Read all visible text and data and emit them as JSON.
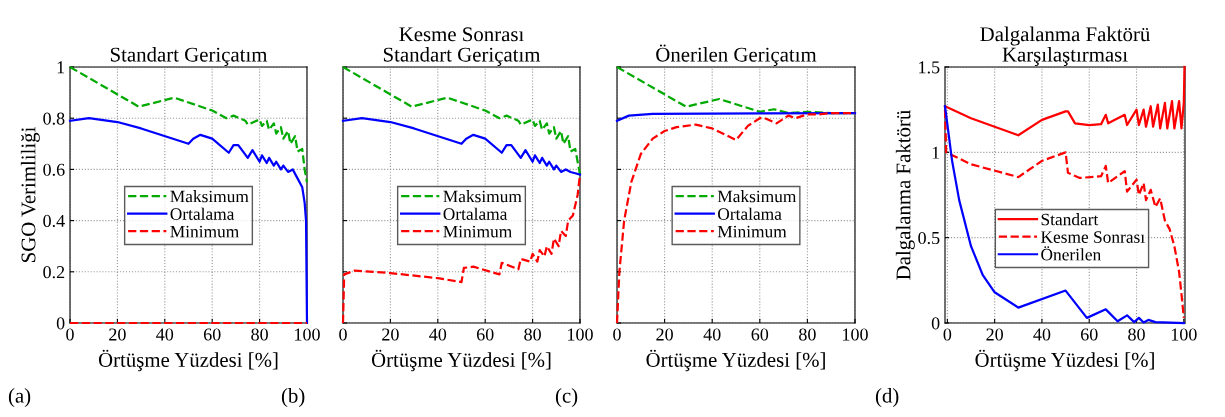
{
  "chart_data": [
    {
      "type": "line",
      "title": "Standart Geriçatım",
      "xlabel": "Örtüşme Yüzdesi [%]",
      "ylabel": "SGO Verimliliği",
      "annotations": [
        "(a)"
      ],
      "xlim": [
        0,
        100
      ],
      "ylim": [
        0,
        1
      ],
      "xticks": [
        0,
        20,
        40,
        60,
        80,
        100
      ],
      "yticks": [
        0,
        0.2,
        0.4,
        0.6,
        0.8,
        1
      ],
      "grid": true,
      "legend": "center",
      "series": [
        {
          "name": "Maksimum",
          "color": "#00aa00",
          "line_style": "dashed",
          "x": [
            0,
            29,
            44,
            60,
            66,
            69,
            74,
            75,
            80,
            81,
            83,
            84,
            86,
            87,
            89,
            90,
            92,
            93,
            95,
            96,
            98,
            99,
            100
          ],
          "values": [
            1,
            0.845,
            0.88,
            0.83,
            0.8,
            0.81,
            0.79,
            0.775,
            0.795,
            0.77,
            0.79,
            0.755,
            0.78,
            0.74,
            0.765,
            0.72,
            0.75,
            0.7,
            0.73,
            0.67,
            0.68,
            0.6,
            0.55
          ]
        },
        {
          "name": "Ortalama",
          "color": "#0000ff",
          "line_style": "solid",
          "x": [
            0,
            8,
            20,
            30,
            50,
            52,
            55,
            60,
            67,
            69,
            71,
            75,
            77,
            80,
            81,
            83,
            84,
            86,
            87,
            89,
            90,
            92,
            94,
            96,
            98,
            99,
            99.6,
            100
          ],
          "values": [
            0.79,
            0.8,
            0.785,
            0.76,
            0.7,
            0.72,
            0.735,
            0.72,
            0.665,
            0.695,
            0.695,
            0.645,
            0.675,
            0.63,
            0.655,
            0.625,
            0.645,
            0.615,
            0.63,
            0.6,
            0.615,
            0.59,
            0.6,
            0.565,
            0.53,
            0.47,
            0.4,
            0
          ]
        },
        {
          "name": "Minimum",
          "color": "#ff0000",
          "line_style": "dashed",
          "x": [
            0,
            100
          ],
          "values": [
            0,
            0
          ]
        }
      ]
    },
    {
      "type": "line",
      "title": "Kesme Sonrası\nStandart Geriçatım",
      "xlabel": "Örtüşme Yüzdesi [%]",
      "annotations": [
        "(b)"
      ],
      "xlim": [
        0,
        100
      ],
      "ylim": [
        0,
        1
      ],
      "xticks": [
        0,
        20,
        40,
        60,
        80,
        100
      ],
      "yticks": [
        0,
        0.2,
        0.4,
        0.6,
        0.8,
        1
      ],
      "tick_labels": "x",
      "grid": true,
      "legend": "center",
      "series": [
        {
          "name": "Maksimum",
          "color": "#00aa00",
          "line_style": "dashed",
          "x": [
            0,
            29,
            44,
            60,
            66,
            69,
            74,
            75,
            80,
            81,
            83,
            84,
            86,
            87,
            89,
            90,
            92,
            93,
            95,
            96,
            98,
            99,
            100
          ],
          "values": [
            1,
            0.845,
            0.88,
            0.83,
            0.8,
            0.81,
            0.79,
            0.775,
            0.795,
            0.77,
            0.79,
            0.755,
            0.78,
            0.74,
            0.765,
            0.72,
            0.75,
            0.7,
            0.73,
            0.67,
            0.68,
            0.63,
            0.58
          ]
        },
        {
          "name": "Ortalama",
          "color": "#0000ff",
          "line_style": "solid",
          "x": [
            0,
            8,
            20,
            30,
            50,
            52,
            55,
            60,
            67,
            69,
            71,
            75,
            77,
            80,
            81,
            83,
            84,
            86,
            87,
            89,
            90,
            92,
            94,
            96,
            98,
            100
          ],
          "values": [
            0.79,
            0.8,
            0.785,
            0.76,
            0.7,
            0.72,
            0.735,
            0.72,
            0.665,
            0.695,
            0.695,
            0.645,
            0.675,
            0.63,
            0.655,
            0.625,
            0.645,
            0.615,
            0.63,
            0.6,
            0.615,
            0.59,
            0.6,
            0.59,
            0.585,
            0.58
          ]
        },
        {
          "name": "Minimum",
          "color": "#ff0000",
          "line_style": "dashed",
          "x": [
            0,
            0.5,
            5,
            20,
            40,
            50,
            51,
            55,
            66,
            67,
            74,
            75,
            79,
            80,
            82,
            83,
            85,
            86,
            88,
            89,
            91,
            92,
            94,
            95,
            97,
            99,
            100
          ],
          "values": [
            0,
            0.19,
            0.205,
            0.195,
            0.175,
            0.16,
            0.215,
            0.22,
            0.19,
            0.235,
            0.21,
            0.25,
            0.24,
            0.27,
            0.24,
            0.285,
            0.26,
            0.3,
            0.27,
            0.33,
            0.3,
            0.36,
            0.34,
            0.4,
            0.42,
            0.5,
            0.58
          ]
        }
      ]
    },
    {
      "type": "line",
      "title": "Önerilen Geriçatım",
      "xlabel": "Örtüşme Yüzdesi [%]",
      "annotations": [
        "(c)"
      ],
      "xlim": [
        0,
        100
      ],
      "ylim": [
        0,
        1
      ],
      "xticks": [
        0,
        20,
        40,
        60,
        80,
        100
      ],
      "yticks": [
        0,
        0.2,
        0.4,
        0.6,
        0.8,
        1
      ],
      "tick_labels": "x",
      "grid": true,
      "legend": "center",
      "series": [
        {
          "name": "Maksimum",
          "color": "#00aa00",
          "line_style": "dashed",
          "x": [
            0,
            29,
            43,
            60,
            66,
            72,
            80,
            90,
            100
          ],
          "values": [
            1,
            0.845,
            0.875,
            0.825,
            0.835,
            0.82,
            0.825,
            0.82,
            0.82
          ]
        },
        {
          "name": "Ortalama",
          "color": "#0000ff",
          "line_style": "solid",
          "x": [
            0,
            5,
            15,
            100
          ],
          "values": [
            0.79,
            0.81,
            0.817,
            0.82
          ]
        },
        {
          "name": "Minimum",
          "color": "#ff0000",
          "line_style": "dashed",
          "x": [
            0,
            1,
            3,
            6,
            10,
            15,
            20,
            25,
            33,
            40,
            50,
            55,
            60,
            62,
            67,
            72,
            75,
            80,
            85,
            90,
            100
          ],
          "values": [
            0,
            0.2,
            0.4,
            0.55,
            0.66,
            0.72,
            0.75,
            0.765,
            0.775,
            0.76,
            0.715,
            0.77,
            0.8,
            0.8,
            0.78,
            0.81,
            0.8,
            0.815,
            0.815,
            0.82,
            0.82
          ]
        }
      ]
    },
    {
      "type": "line",
      "title": "Dalgalanma Faktörü\nKarşılaştırması",
      "xlabel": "Örtüşme Yüzdesi [%]",
      "ylabel": "Dalgalanma Faktörü",
      "annotations": [
        "(d)"
      ],
      "xlim": [
        -1,
        100.5
      ],
      "ylim": [
        0,
        1.5
      ],
      "xticks": [
        0,
        20,
        40,
        60,
        80,
        100
      ],
      "yticks": [
        0,
        0.5,
        1,
        1.5
      ],
      "grid": true,
      "legend": "center right",
      "series": [
        {
          "name": "Standart",
          "color": "#ff0000",
          "line_style": "solid",
          "x": [
            -1,
            10,
            30,
            40,
            50,
            51,
            54,
            60,
            65,
            67,
            68,
            75,
            76,
            80,
            81,
            83,
            84,
            86,
            87,
            89,
            90,
            92,
            93,
            95,
            96,
            98,
            99,
            100,
            100.3
          ],
          "values": [
            1.27,
            1.2,
            1.1,
            1.19,
            1.24,
            1.24,
            1.17,
            1.16,
            1.165,
            1.22,
            1.17,
            1.22,
            1.16,
            1.25,
            1.16,
            1.25,
            1.15,
            1.27,
            1.15,
            1.28,
            1.14,
            1.29,
            1.14,
            1.3,
            1.14,
            1.3,
            1.14,
            1.29,
            1.5
          ]
        },
        {
          "name": "Kesme Sonrası",
          "color": "#ff0000",
          "line_style": "dashed",
          "x": [
            -1,
            -0.5,
            10,
            30,
            40,
            50,
            51,
            56,
            65,
            67,
            68,
            75,
            76,
            80,
            81,
            83,
            84,
            86,
            88,
            90,
            92,
            94,
            96,
            98,
            99,
            100
          ],
          "values": [
            1.25,
            1.0,
            0.93,
            0.855,
            0.95,
            1.0,
            0.88,
            0.85,
            0.86,
            0.92,
            0.82,
            0.89,
            0.77,
            0.84,
            0.75,
            0.82,
            0.72,
            0.78,
            0.68,
            0.73,
            0.6,
            0.55,
            0.45,
            0.3,
            0.17,
            0.03
          ]
        },
        {
          "name": "Önerilen",
          "color": "#0000ff",
          "line_style": "solid",
          "x": [
            -1,
            2,
            5,
            10,
            15,
            20,
            30,
            50,
            59,
            67,
            72,
            76,
            79,
            81,
            83,
            85,
            88,
            100
          ],
          "values": [
            1.27,
            0.95,
            0.72,
            0.45,
            0.28,
            0.18,
            0.09,
            0.19,
            0.03,
            0.08,
            0.01,
            0.045,
            0.005,
            0.03,
            0.003,
            0.018,
            0.005,
            0
          ]
        }
      ]
    }
  ]
}
